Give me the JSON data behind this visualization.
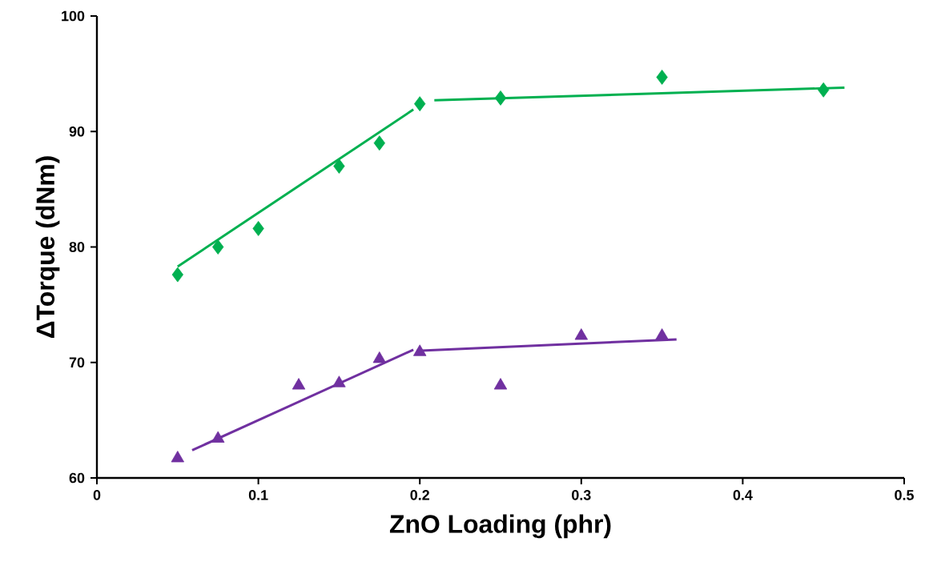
{
  "chart_data": {
    "type": "scatter",
    "xlabel": "ZnO Loading (phr)",
    "ylabel": "ΔTorque (dNm)",
    "xlim": [
      0,
      0.5
    ],
    "ylim": [
      60,
      100
    ],
    "xticks": [
      0,
      0.1,
      0.2,
      0.3,
      0.4,
      0.5
    ],
    "yticks": [
      60,
      70,
      80,
      90,
      100
    ],
    "grid": false,
    "series": [
      {
        "marker": "diamond",
        "color": "#00b050",
        "x": [
          0.05,
          0.075,
          0.1,
          0.15,
          0.175,
          0.2,
          0.25,
          0.35,
          0.45
        ],
        "values": [
          77.6,
          80.0,
          81.6,
          87.0,
          89.0,
          92.4,
          92.9,
          94.7,
          93.6
        ]
      },
      {
        "marker": "triangle",
        "color": "#7030a0",
        "x": [
          0.05,
          0.075,
          0.125,
          0.15,
          0.175,
          0.2,
          0.25,
          0.3,
          0.35
        ],
        "values": [
          61.7,
          63.4,
          68.0,
          68.2,
          70.3,
          70.9,
          68.0,
          72.3,
          72.3
        ]
      },
      {
        "type": "line",
        "marker": "none",
        "color": "#00b050",
        "x": [
          0.05,
          0.196
        ],
        "values": [
          78.3,
          91.9
        ]
      },
      {
        "type": "line",
        "marker": "none",
        "color": "#00b050",
        "x": [
          0.209,
          0.463
        ],
        "values": [
          92.7,
          93.8
        ]
      },
      {
        "type": "line",
        "marker": "none",
        "color": "#7030a0",
        "x": [
          0.059,
          0.196
        ],
        "values": [
          62.4,
          71.1
        ]
      },
      {
        "type": "line",
        "marker": "none",
        "color": "#7030a0",
        "x": [
          0.198,
          0.359
        ],
        "values": [
          71.0,
          72.0
        ]
      }
    ]
  }
}
